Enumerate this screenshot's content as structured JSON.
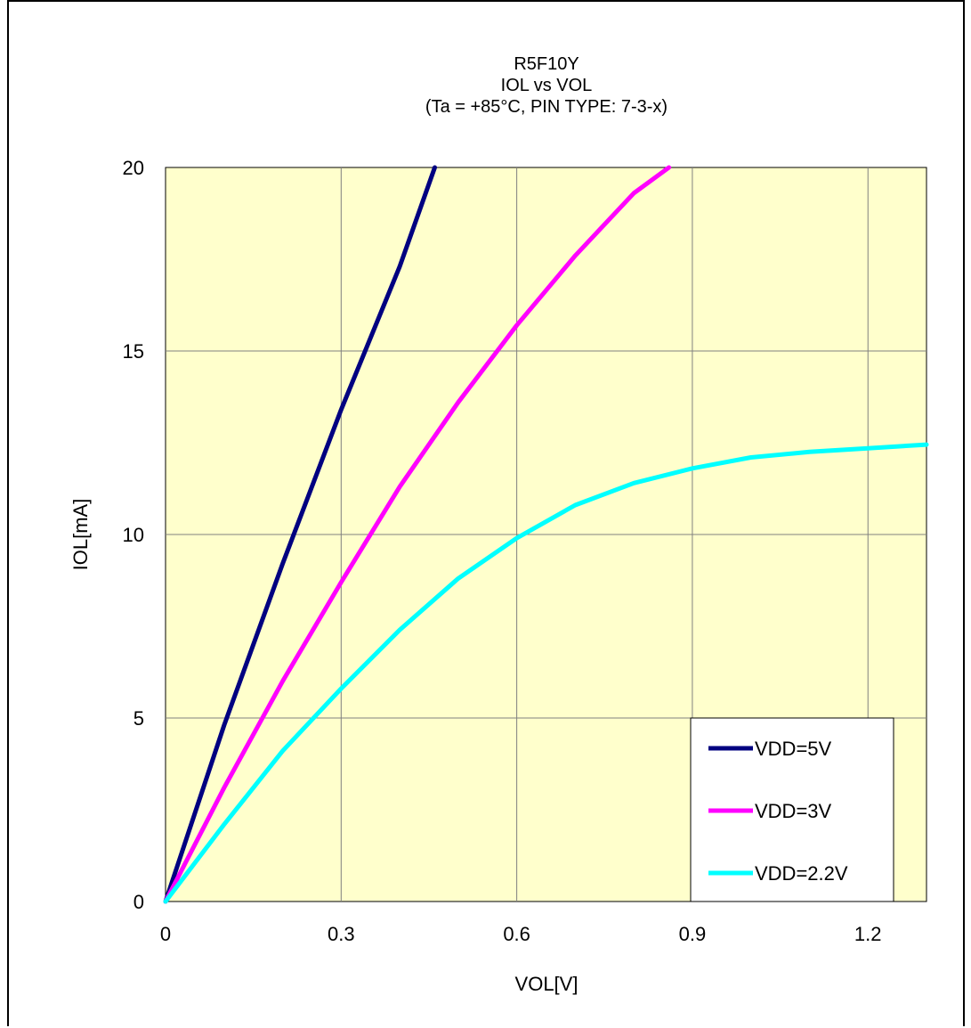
{
  "chart_data": {
    "type": "line",
    "title_lines": [
      "R5F10Y",
      "IOL vs VOL",
      "(Ta = +85°C, PIN TYPE: 7-3-x)"
    ],
    "xlabel": "VOL[V]",
    "ylabel": "IOL[mA]",
    "xlim": [
      0,
      1.3
    ],
    "ylim": [
      0,
      20
    ],
    "x_ticks": [
      0,
      0.3,
      0.6,
      0.9,
      1.2
    ],
    "x_tick_labels": [
      "0",
      "0.3",
      "0.6",
      "0.9",
      "1.2"
    ],
    "y_ticks": [
      0,
      5,
      10,
      15,
      20
    ],
    "y_tick_labels": [
      "0",
      "5",
      "10",
      "15",
      "20"
    ],
    "grid": true,
    "plot_background": "#ffffcc",
    "legend_position": "bottom-right",
    "series": [
      {
        "name": "VDD=5V",
        "color": "#000080",
        "points": [
          [
            0,
            0
          ],
          [
            0.1,
            4.8
          ],
          [
            0.2,
            9.2
          ],
          [
            0.3,
            13.4
          ],
          [
            0.4,
            17.3
          ],
          [
            0.46,
            20
          ]
        ]
      },
      {
        "name": "VDD=3V",
        "color": "#ff00ff",
        "points": [
          [
            0,
            0
          ],
          [
            0.1,
            3.1
          ],
          [
            0.2,
            6.0
          ],
          [
            0.3,
            8.7
          ],
          [
            0.4,
            11.3
          ],
          [
            0.5,
            13.6
          ],
          [
            0.6,
            15.7
          ],
          [
            0.7,
            17.6
          ],
          [
            0.8,
            19.3
          ],
          [
            0.86,
            20
          ]
        ]
      },
      {
        "name": "VDD=2.2V",
        "color": "#00ffff",
        "points": [
          [
            0,
            0
          ],
          [
            0.1,
            2.1
          ],
          [
            0.2,
            4.1
          ],
          [
            0.3,
            5.8
          ],
          [
            0.4,
            7.4
          ],
          [
            0.5,
            8.8
          ],
          [
            0.6,
            9.9
          ],
          [
            0.7,
            10.8
          ],
          [
            0.8,
            11.4
          ],
          [
            0.9,
            11.8
          ],
          [
            1.0,
            12.1
          ],
          [
            1.1,
            12.25
          ],
          [
            1.2,
            12.35
          ],
          [
            1.3,
            12.45
          ]
        ]
      }
    ]
  }
}
